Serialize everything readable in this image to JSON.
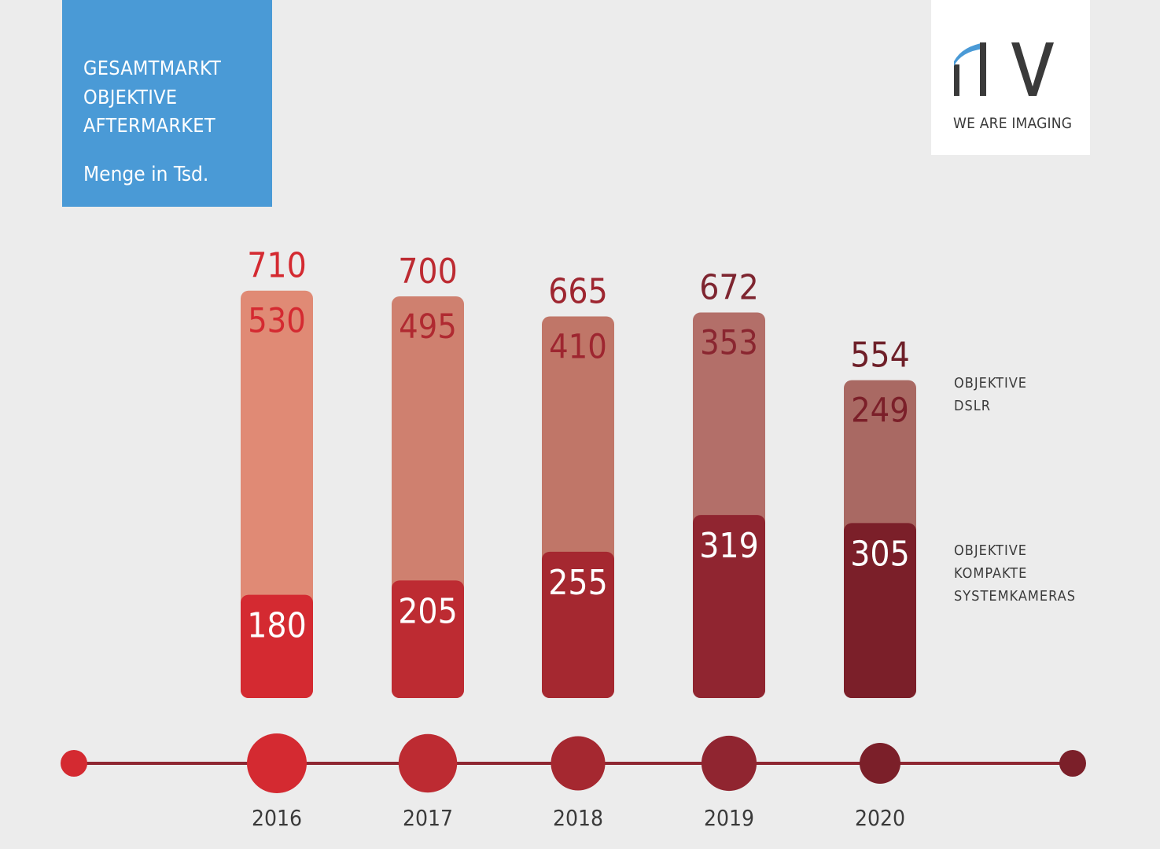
{
  "title_lines": [
    "GESAMTMARKT",
    "OBJEKTIVE",
    "AFTERMARKET"
  ],
  "subtitle": "Menge in Tsd.",
  "logo": {
    "mark": "PIV",
    "tagline": "WE ARE IMAGING"
  },
  "legend": {
    "dslr": [
      "OBJEKTIVE",
      "DSLR"
    ],
    "msc": [
      "OBJEKTIVE",
      "KOMPAKTE",
      "SYSTEMKAMERAS"
    ]
  },
  "colors": {
    "title_box": "#4a9ad6",
    "timeline": "#8e2631",
    "year_text": "#3a3a3a",
    "msc_bars": [
      "#d42a31",
      "#bd2b32",
      "#a52830",
      "#902530",
      "#7b1f29"
    ],
    "dslr_bars": [
      "#e08a75",
      "#cf806f",
      "#c07668",
      "#b36f69",
      "#a96963"
    ],
    "total_labels": [
      "#d42a31",
      "#bd2b32",
      "#9e2630",
      "#7e2530",
      "#6e1f28"
    ],
    "dslr_labels": [
      "#d42a31",
      "#b02a31",
      "#9e2630",
      "#8a2630",
      "#7b1f29"
    ]
  },
  "chart_data": {
    "type": "bar",
    "stacked": true,
    "categories": [
      "2016",
      "2017",
      "2018",
      "2019",
      "2020"
    ],
    "series": [
      {
        "name": "OBJEKTIVE KOMPAKTE SYSTEMKAMERAS",
        "values": [
          180,
          205,
          255,
          319,
          305
        ]
      },
      {
        "name": "OBJEKTIVE DSLR",
        "values": [
          530,
          495,
          410,
          353,
          249
        ]
      }
    ],
    "totals": [
      710,
      700,
      665,
      672,
      554
    ],
    "title": "GESAMTMARKT OBJEKTIVE AFTERMARKET",
    "subtitle": "Menge in Tsd.",
    "legend_position": "right",
    "grid": false
  }
}
